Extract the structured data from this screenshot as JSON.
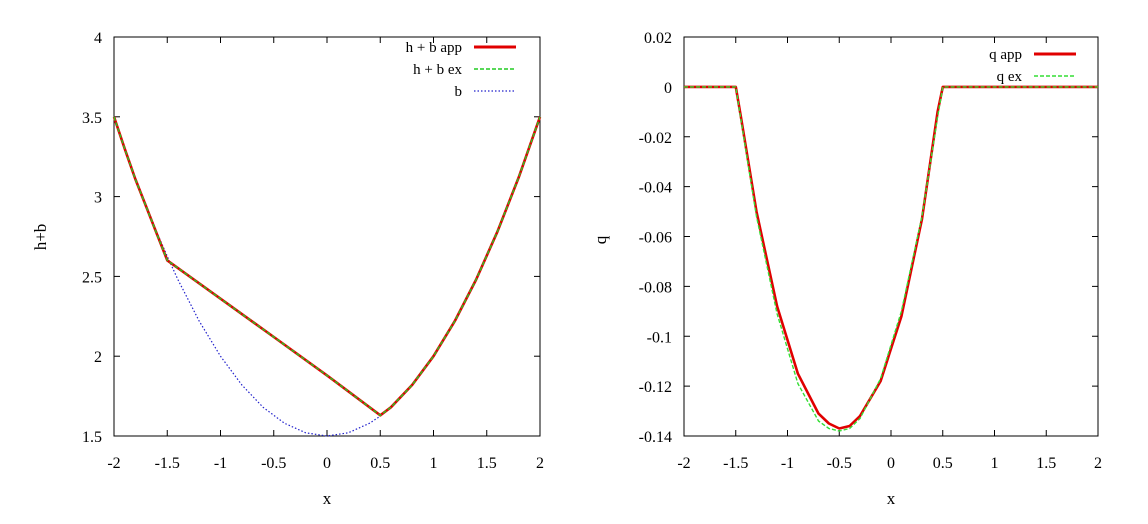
{
  "chart_data": [
    {
      "type": "line",
      "title": "",
      "xlabel": "x",
      "ylabel": "h+b",
      "xlim": [
        -2,
        2
      ],
      "ylim": [
        1.5,
        4
      ],
      "xticks": [
        "-2",
        "-1.5",
        "-1",
        "-0.5",
        "0",
        "0.5",
        "1",
        "1.5",
        "2"
      ],
      "yticks": [
        "1.5",
        "2",
        "2.5",
        "3",
        "3.5",
        "4"
      ],
      "grid": false,
      "legend_position": "top-right",
      "series": [
        {
          "name": "h + b app",
          "color": "#e00000",
          "style": "solid",
          "x": [
            -2,
            -1.9,
            -1.8,
            -1.7,
            -1.6,
            -1.5,
            -1.0,
            -0.5,
            0.0,
            0.5,
            0.6,
            0.8,
            1.0,
            1.2,
            1.4,
            1.6,
            1.8,
            2.0
          ],
          "y": [
            3.5,
            3.3,
            3.11,
            2.94,
            2.77,
            2.6,
            2.36,
            2.12,
            1.88,
            1.63,
            1.68,
            1.82,
            2.0,
            2.22,
            2.48,
            2.78,
            3.12,
            3.5
          ]
        },
        {
          "name": "h + b ex",
          "color": "#22cc22",
          "style": "dashed",
          "x": [
            -2,
            -1.9,
            -1.8,
            -1.7,
            -1.6,
            -1.5,
            -1.0,
            -0.5,
            0.0,
            0.5,
            0.6,
            0.8,
            1.0,
            1.2,
            1.4,
            1.6,
            1.8,
            2.0
          ],
          "y": [
            3.5,
            3.3,
            3.11,
            2.94,
            2.77,
            2.6,
            2.36,
            2.12,
            1.88,
            1.63,
            1.68,
            1.82,
            2.0,
            2.22,
            2.48,
            2.78,
            3.12,
            3.5
          ]
        },
        {
          "name": "b",
          "color": "#2222cc",
          "style": "dotted",
          "x": [
            -2.0,
            -1.8,
            -1.6,
            -1.5,
            -1.4,
            -1.2,
            -1.0,
            -0.8,
            -0.6,
            -0.4,
            -0.2,
            0.0,
            0.2,
            0.4,
            0.5,
            0.6,
            0.8,
            1.0,
            1.2,
            1.4,
            1.6,
            1.8,
            2.0
          ],
          "y": [
            3.5,
            3.12,
            2.78,
            2.625,
            2.48,
            2.22,
            2.0,
            1.82,
            1.68,
            1.58,
            1.52,
            1.5,
            1.52,
            1.58,
            1.625,
            1.68,
            1.82,
            2.0,
            2.22,
            2.48,
            2.78,
            3.12,
            3.5
          ]
        }
      ]
    },
    {
      "type": "line",
      "title": "",
      "xlabel": "x",
      "ylabel": "q",
      "xlim": [
        -2,
        2
      ],
      "ylim": [
        -0.14,
        0.02
      ],
      "xticks": [
        "-2",
        "-1.5",
        "-1",
        "-0.5",
        "0",
        "0.5",
        "1",
        "1.5",
        "2"
      ],
      "yticks": [
        "-0.14",
        "-0.12",
        "-0.1",
        "-0.08",
        "-0.06",
        "-0.04",
        "-0.02",
        "0",
        "0.02"
      ],
      "grid": false,
      "legend_position": "top-right",
      "series": [
        {
          "name": "q app",
          "color": "#e00000",
          "style": "solid",
          "x": [
            -2.0,
            -1.5,
            -1.45,
            -1.3,
            -1.1,
            -0.9,
            -0.7,
            -0.6,
            -0.5,
            -0.4,
            -0.3,
            -0.1,
            0.1,
            0.3,
            0.45,
            0.5,
            2.0
          ],
          "y": [
            0.0,
            0.0,
            -0.012,
            -0.05,
            -0.088,
            -0.115,
            -0.131,
            -0.135,
            -0.137,
            -0.136,
            -0.132,
            -0.118,
            -0.092,
            -0.053,
            -0.01,
            0.0,
            0.0
          ]
        },
        {
          "name": "q ex",
          "color": "#33dd33",
          "style": "dashed",
          "x": [
            -2.0,
            -1.5,
            -1.45,
            -1.3,
            -1.1,
            -0.9,
            -0.7,
            -0.6,
            -0.5,
            -0.4,
            -0.3,
            -0.1,
            0.1,
            0.3,
            0.45,
            0.5,
            2.0
          ],
          "y": [
            0.0,
            0.0,
            -0.013,
            -0.052,
            -0.091,
            -0.119,
            -0.134,
            -0.137,
            -0.138,
            -0.137,
            -0.133,
            -0.117,
            -0.09,
            -0.052,
            -0.012,
            0.0,
            0.0
          ]
        }
      ]
    }
  ]
}
